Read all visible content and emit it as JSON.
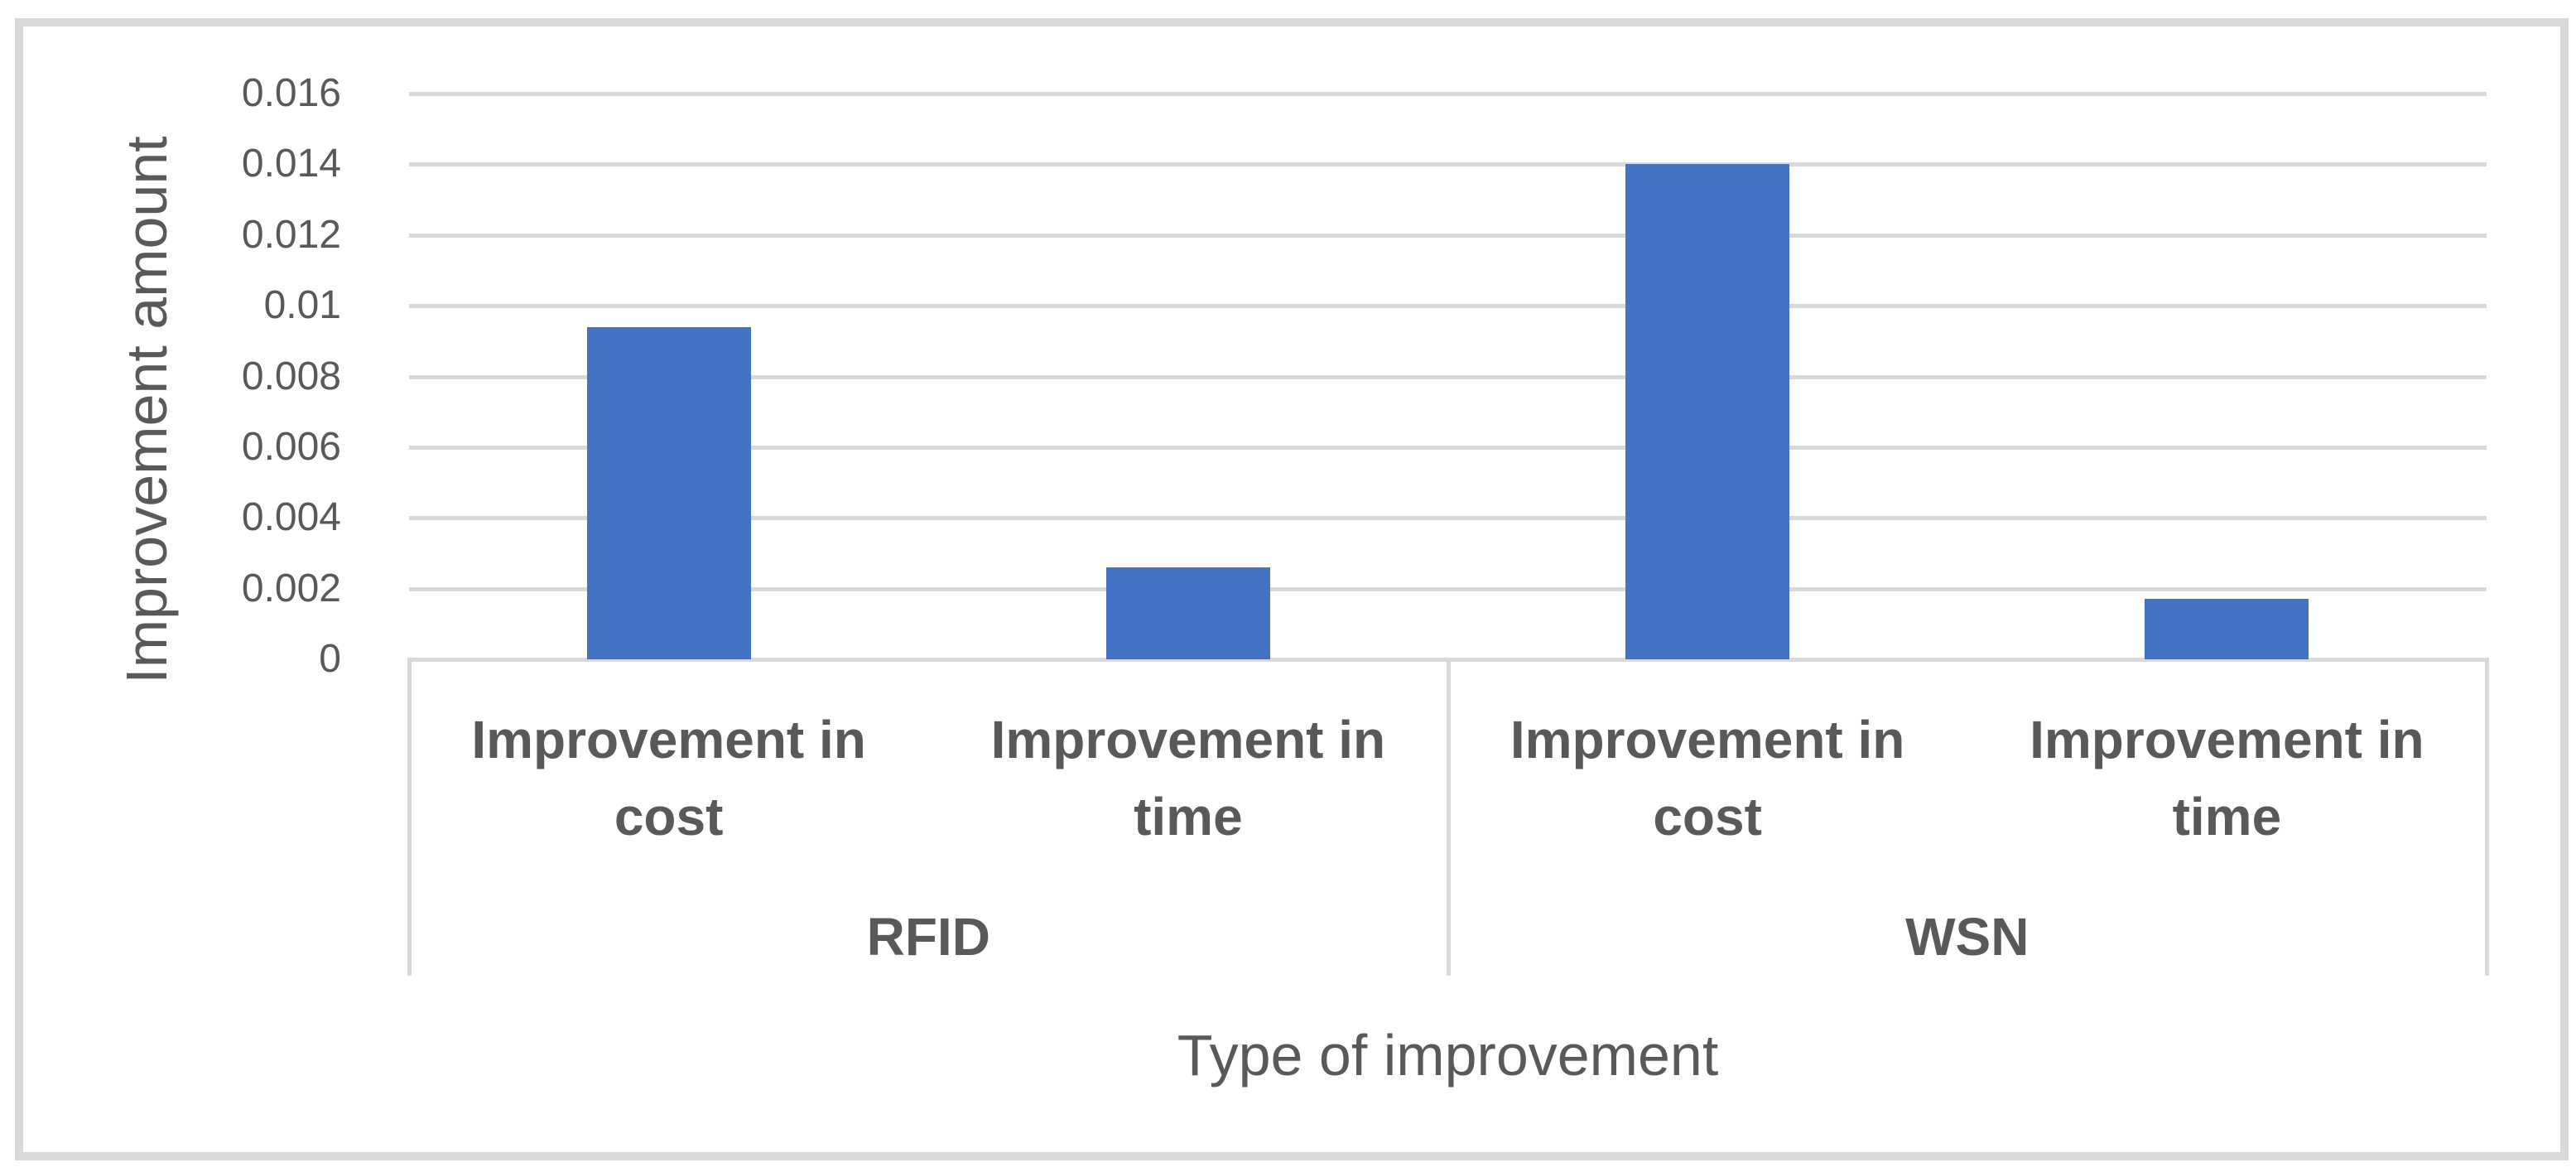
{
  "chart_data": {
    "type": "bar",
    "title": "",
    "xlabel": "Type of improvement",
    "ylabel": "Improvement amount",
    "groups": [
      {
        "label": "RFID",
        "categories": [
          "Improvement in cost",
          "Improvement in time"
        ],
        "values": [
          0.0094,
          0.0026
        ]
      },
      {
        "label": "WSN",
        "categories": [
          "Improvement in cost",
          "Improvement in time"
        ],
        "values": [
          0.014,
          0.0017
        ]
      }
    ],
    "series": [
      {
        "name": "",
        "values": [
          0.0094,
          0.0026,
          0.014,
          0.0017
        ]
      }
    ],
    "categories": [
      "Improvement in cost",
      "Improvement in time",
      "Improvement in cost",
      "Improvement in time"
    ],
    "ylim": [
      0,
      0.016
    ],
    "yticks": [
      0,
      0.002,
      0.004,
      0.006,
      0.008,
      0.01,
      0.012,
      0.014,
      0.016
    ],
    "ytick_labels": [
      "0",
      "0.002",
      "0.004",
      "0.006",
      "0.008",
      "0.01",
      "0.012",
      "0.014",
      "0.016"
    ],
    "grid": true,
    "legend": false,
    "colors": {
      "bar": "#4472C4",
      "grid": "#D9D9D9",
      "axis": "#D9D9D9",
      "border": "#D9D9D9",
      "text": "#595959"
    }
  }
}
